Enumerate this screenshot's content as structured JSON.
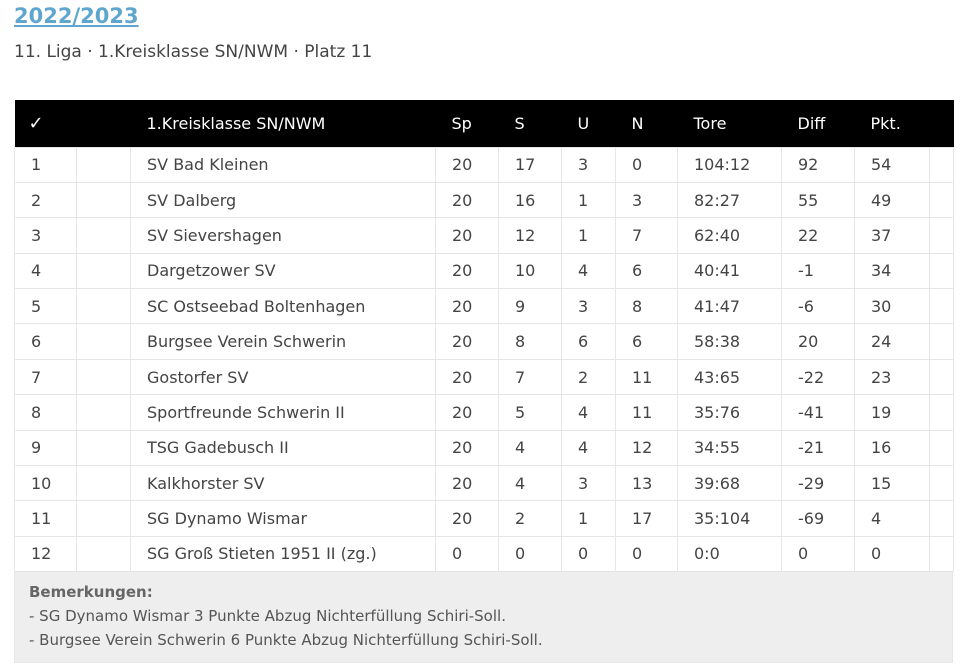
{
  "header": {
    "season": "2022/2023",
    "subtitle": "11. Liga · 1.Kreisklasse SN/NWM · Platz 11"
  },
  "table": {
    "columns": [
      "✓",
      "",
      "1.Kreisklasse SN/NWM",
      "Sp",
      "S",
      "U",
      "N",
      "Tore",
      "Diff",
      "Pkt.",
      ""
    ],
    "rows": [
      {
        "pos": "1",
        "team": "SV Bad Kleinen",
        "sp": "20",
        "s": "17",
        "u": "3",
        "n": "0",
        "tore": "104:12",
        "diff": "92",
        "pkt": "54"
      },
      {
        "pos": "2",
        "team": "SV Dalberg",
        "sp": "20",
        "s": "16",
        "u": "1",
        "n": "3",
        "tore": "82:27",
        "diff": "55",
        "pkt": "49"
      },
      {
        "pos": "3",
        "team": "SV Sievershagen",
        "sp": "20",
        "s": "12",
        "u": "1",
        "n": "7",
        "tore": "62:40",
        "diff": "22",
        "pkt": "37"
      },
      {
        "pos": "4",
        "team": "Dargetzower SV",
        "sp": "20",
        "s": "10",
        "u": "4",
        "n": "6",
        "tore": "40:41",
        "diff": "-1",
        "pkt": "34"
      },
      {
        "pos": "5",
        "team": "SC Ostseebad Boltenhagen",
        "sp": "20",
        "s": "9",
        "u": "3",
        "n": "8",
        "tore": "41:47",
        "diff": "-6",
        "pkt": "30"
      },
      {
        "pos": "6",
        "team": "Burgsee Verein Schwerin",
        "sp": "20",
        "s": "8",
        "u": "6",
        "n": "6",
        "tore": "58:38",
        "diff": "20",
        "pkt": "24"
      },
      {
        "pos": "7",
        "team": "Gostorfer SV",
        "sp": "20",
        "s": "7",
        "u": "2",
        "n": "11",
        "tore": "43:65",
        "diff": "-22",
        "pkt": "23"
      },
      {
        "pos": "8",
        "team": "Sportfreunde Schwerin II",
        "sp": "20",
        "s": "5",
        "u": "4",
        "n": "11",
        "tore": "35:76",
        "diff": "-41",
        "pkt": "19"
      },
      {
        "pos": "9",
        "team": "TSG Gadebusch II",
        "sp": "20",
        "s": "4",
        "u": "4",
        "n": "12",
        "tore": "34:55",
        "diff": "-21",
        "pkt": "16"
      },
      {
        "pos": "10",
        "team": "Kalkhorster SV",
        "sp": "20",
        "s": "4",
        "u": "3",
        "n": "13",
        "tore": "39:68",
        "diff": "-29",
        "pkt": "15"
      },
      {
        "pos": "11",
        "team": "SG Dynamo Wismar",
        "sp": "20",
        "s": "2",
        "u": "1",
        "n": "17",
        "tore": "35:104",
        "diff": "-69",
        "pkt": "4"
      },
      {
        "pos": "12",
        "team": "SG Groß Stieten 1951 II (zg.)",
        "sp": "0",
        "s": "0",
        "u": "0",
        "n": "0",
        "tore": "0:0",
        "diff": "0",
        "pkt": "0"
      }
    ]
  },
  "remarks": {
    "title": "Bemerkungen:",
    "lines": [
      "- SG Dynamo Wismar 3 Punkte Abzug Nichterfüllung Schiri-Soll.",
      "- Burgsee Verein Schwerin 6 Punkte Abzug Nichterfüllung Schiri-Soll."
    ]
  }
}
